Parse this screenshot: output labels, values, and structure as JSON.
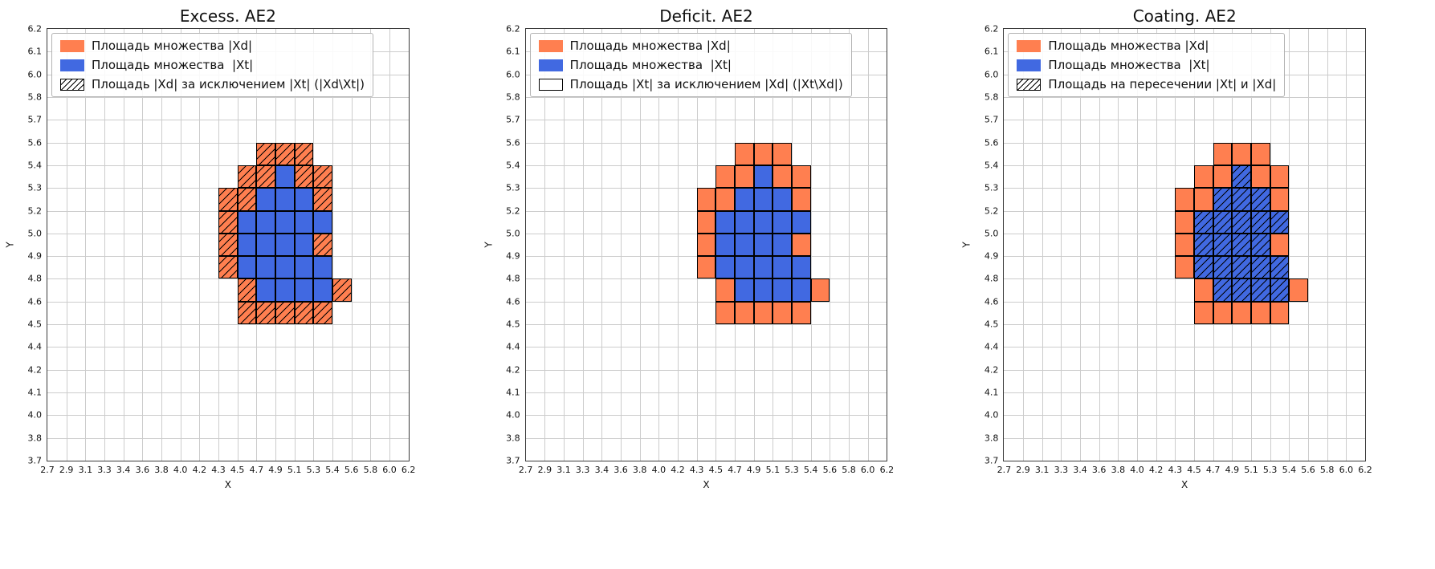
{
  "figure": {
    "background": "#ffffff"
  },
  "plots": [
    {
      "title": "Excess. AE2",
      "hatched_set": "xd",
      "legend": [
        {
          "swatch": "xd",
          "label": "Площадь множества |Xd|"
        },
        {
          "swatch": "xt",
          "label": "Площадь множества  |Xt|"
        },
        {
          "swatch": "hatch",
          "label": "Площадь |Xd| за исключением |Xt| (|Xd\\Xt|)"
        }
      ]
    },
    {
      "title": "Deficit. AE2",
      "hatched_set": "",
      "legend": [
        {
          "swatch": "xd",
          "label": "Площадь множества |Xd|"
        },
        {
          "swatch": "xt",
          "label": "Площадь множества  |Xt|"
        },
        {
          "swatch": "empty",
          "label": "Площадь |Xt| за исключением |Xd| (|Xt\\Xd|)"
        }
      ]
    },
    {
      "title": "Coating. AE2",
      "hatched_set": "xt",
      "legend": [
        {
          "swatch": "xd",
          "label": "Площадь множества |Xd|"
        },
        {
          "swatch": "xt",
          "label": "Площадь множества  |Xt|"
        },
        {
          "swatch": "hatch",
          "label": "Площадь на пересечении |Xt| и |Xd|"
        }
      ]
    }
  ],
  "chart_data": {
    "type": "heatmap",
    "xlabel": "X",
    "ylabel": "Y",
    "grid": true,
    "grid_color": "#cccccc",
    "legend_position": "upper left",
    "x_ticks": [
      "2.7",
      "2.9",
      "3.1",
      "3.3",
      "3.4",
      "3.6",
      "3.8",
      "4.0",
      "4.2",
      "4.3",
      "4.5",
      "4.7",
      "4.9",
      "5.1",
      "5.3",
      "5.4",
      "5.6",
      "5.8",
      "6.0",
      "6.2"
    ],
    "y_ticks_top_to_bottom": [
      "6.2",
      "6.1",
      "6.0",
      "5.8",
      "5.7",
      "5.6",
      "5.4",
      "5.3",
      "5.2",
      "5.0",
      "4.9",
      "4.8",
      "4.6",
      "4.5",
      "4.4",
      "4.2",
      "4.1",
      "4.0",
      "3.8",
      "3.7"
    ],
    "x_range": [
      2.7,
      6.2
    ],
    "y_range": [
      3.7,
      6.2
    ],
    "cell_colors": {
      "xd": "#ff7f50",
      "xt": "#4169e1"
    },
    "cell_edge_color": "#000000",
    "sets": {
      "xd": "Площадь множества |Xd| (оранжевые ячейки)",
      "xt": "Площадь множества |Xt| (синие ячейки)"
    },
    "cell_index_note": "cells given as [x_interval_index_from_left, y_interval_index_from_top] on the 19x19 tick grid; same cell layout in all three subplots, hatching differs per subplot",
    "cells": {
      "xd": [
        [
          11,
          5
        ],
        [
          12,
          5
        ],
        [
          13,
          5
        ],
        [
          10,
          6
        ],
        [
          11,
          6
        ],
        [
          13,
          6
        ],
        [
          14,
          6
        ],
        [
          9,
          7
        ],
        [
          10,
          7
        ],
        [
          14,
          7
        ],
        [
          9,
          8
        ],
        [
          9,
          9
        ],
        [
          14,
          9
        ],
        [
          9,
          10
        ],
        [
          10,
          11
        ],
        [
          15,
          11
        ],
        [
          10,
          12
        ],
        [
          11,
          12
        ],
        [
          12,
          12
        ],
        [
          13,
          12
        ],
        [
          14,
          12
        ]
      ],
      "xt": [
        [
          12,
          6
        ],
        [
          11,
          7
        ],
        [
          12,
          7
        ],
        [
          13,
          7
        ],
        [
          10,
          8
        ],
        [
          11,
          8
        ],
        [
          12,
          8
        ],
        [
          13,
          8
        ],
        [
          14,
          8
        ],
        [
          10,
          9
        ],
        [
          11,
          9
        ],
        [
          12,
          9
        ],
        [
          13,
          9
        ],
        [
          10,
          10
        ],
        [
          11,
          10
        ],
        [
          12,
          10
        ],
        [
          13,
          10
        ],
        [
          14,
          10
        ],
        [
          11,
          11
        ],
        [
          12,
          11
        ],
        [
          13,
          11
        ],
        [
          14,
          11
        ]
      ]
    }
  }
}
